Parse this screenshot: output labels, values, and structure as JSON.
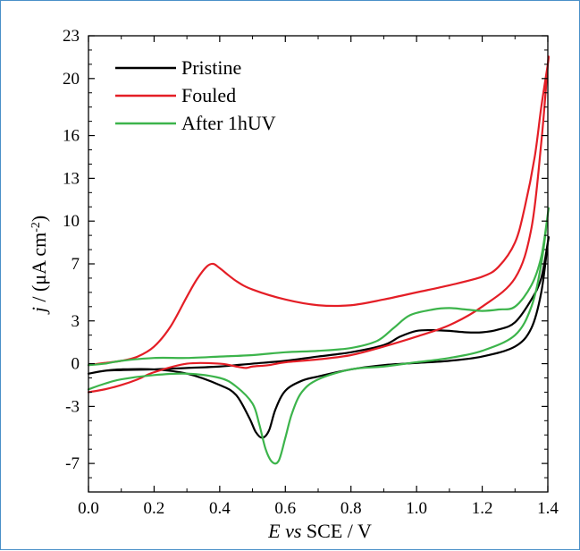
{
  "chart_data": {
    "type": "line",
    "title": "",
    "xlabel": {
      "italic": "E",
      "italic2": "vs",
      "rest": " SCE / V"
    },
    "ylabel": {
      "italic": "j",
      "rest": " / (μA cm",
      "sup": "-2",
      "close": ")"
    },
    "xlim": [
      0.0,
      1.4
    ],
    "ylim": [
      -9,
      23
    ],
    "xticks": [
      0.0,
      0.2,
      0.4,
      0.6,
      0.8,
      1.0,
      1.2,
      1.4
    ],
    "xtick_labels": [
      "0.0",
      "0.2",
      "0.4",
      "0.6",
      "0.8",
      "1.0",
      "1.2",
      "1.4"
    ],
    "yticks": [
      -7,
      -3,
      0,
      3,
      7,
      10,
      13,
      16,
      20,
      23
    ],
    "ytick_labels": [
      "-7",
      "-3",
      "0",
      "3",
      "7",
      "10",
      "13",
      "16",
      "20",
      "23"
    ],
    "grid": false,
    "legend_position": "top-left",
    "series": [
      {
        "name": "Pristine",
        "color": "#000000",
        "x": [
          0.0,
          0.05,
          0.1,
          0.2,
          0.3,
          0.4,
          0.5,
          0.6,
          0.7,
          0.8,
          0.9,
          0.95,
          1.0,
          1.05,
          1.1,
          1.15,
          1.2,
          1.25,
          1.3,
          1.35,
          1.38,
          1.4,
          1.4,
          1.38,
          1.35,
          1.3,
          1.2,
          1.1,
          1.0,
          0.9,
          0.8,
          0.7,
          0.65,
          0.6,
          0.57,
          0.55,
          0.53,
          0.51,
          0.49,
          0.45,
          0.4,
          0.3,
          0.2,
          0.1,
          0.05,
          0.0
        ],
        "y": [
          -0.7,
          -0.5,
          -0.45,
          -0.4,
          -0.3,
          -0.2,
          0.0,
          0.2,
          0.5,
          0.8,
          1.3,
          1.9,
          2.3,
          2.35,
          2.3,
          2.2,
          2.2,
          2.4,
          2.9,
          4.5,
          6.0,
          8.5,
          8.5,
          5.0,
          2.5,
          1.2,
          0.5,
          0.2,
          0.05,
          -0.1,
          -0.4,
          -0.9,
          -1.2,
          -1.9,
          -3.2,
          -4.7,
          -5.2,
          -4.8,
          -3.8,
          -2.2,
          -1.5,
          -0.7,
          -0.4,
          -0.4,
          -0.5,
          -0.7
        ]
      },
      {
        "name": "Fouled",
        "color": "#e41e26",
        "x": [
          0.0,
          0.05,
          0.1,
          0.15,
          0.2,
          0.25,
          0.3,
          0.33,
          0.36,
          0.38,
          0.4,
          0.45,
          0.5,
          0.6,
          0.7,
          0.8,
          0.9,
          1.0,
          1.1,
          1.2,
          1.25,
          1.3,
          1.33,
          1.36,
          1.38,
          1.4,
          1.4,
          1.38,
          1.35,
          1.3,
          1.2,
          1.1,
          1.0,
          0.9,
          0.8,
          0.7,
          0.6,
          0.55,
          0.5,
          0.48,
          0.45,
          0.4,
          0.3,
          0.2,
          0.15,
          0.1,
          0.05,
          0.0
        ],
        "y": [
          -0.1,
          0.05,
          0.2,
          0.5,
          1.2,
          2.6,
          4.7,
          5.9,
          6.8,
          7.0,
          6.7,
          5.8,
          5.2,
          4.5,
          4.1,
          4.1,
          4.5,
          5.0,
          5.5,
          6.1,
          6.8,
          8.5,
          11.0,
          14.5,
          18.0,
          21.0,
          21.0,
          15.5,
          9.5,
          6.0,
          4.0,
          2.7,
          1.9,
          1.2,
          0.6,
          0.3,
          0.1,
          -0.1,
          -0.2,
          -0.3,
          -0.2,
          0.0,
          0.0,
          -0.6,
          -1.1,
          -1.5,
          -1.8,
          -2.0
        ]
      },
      {
        "name": "After 1hUV",
        "color": "#3cb44b",
        "x": [
          0.0,
          0.05,
          0.1,
          0.2,
          0.3,
          0.4,
          0.5,
          0.6,
          0.7,
          0.8,
          0.88,
          0.93,
          0.98,
          1.05,
          1.1,
          1.15,
          1.2,
          1.25,
          1.3,
          1.35,
          1.38,
          1.4,
          1.4,
          1.38,
          1.35,
          1.3,
          1.2,
          1.1,
          1.0,
          0.9,
          0.8,
          0.7,
          0.65,
          0.62,
          0.6,
          0.58,
          0.56,
          0.54,
          0.52,
          0.5,
          0.45,
          0.4,
          0.3,
          0.2,
          0.1,
          0.05,
          0.0
        ],
        "y": [
          -0.1,
          0.0,
          0.2,
          0.4,
          0.4,
          0.5,
          0.6,
          0.8,
          0.9,
          1.1,
          1.6,
          2.5,
          3.4,
          3.8,
          3.9,
          3.8,
          3.7,
          3.8,
          4.0,
          5.5,
          7.5,
          10.5,
          10.5,
          7.0,
          4.0,
          2.0,
          0.9,
          0.4,
          0.1,
          -0.2,
          -0.4,
          -1.1,
          -2.0,
          -3.5,
          -5.2,
          -6.8,
          -6.9,
          -6.0,
          -4.2,
          -2.8,
          -1.6,
          -1.0,
          -0.7,
          -0.8,
          -1.1,
          -1.4,
          -1.8
        ]
      }
    ]
  }
}
